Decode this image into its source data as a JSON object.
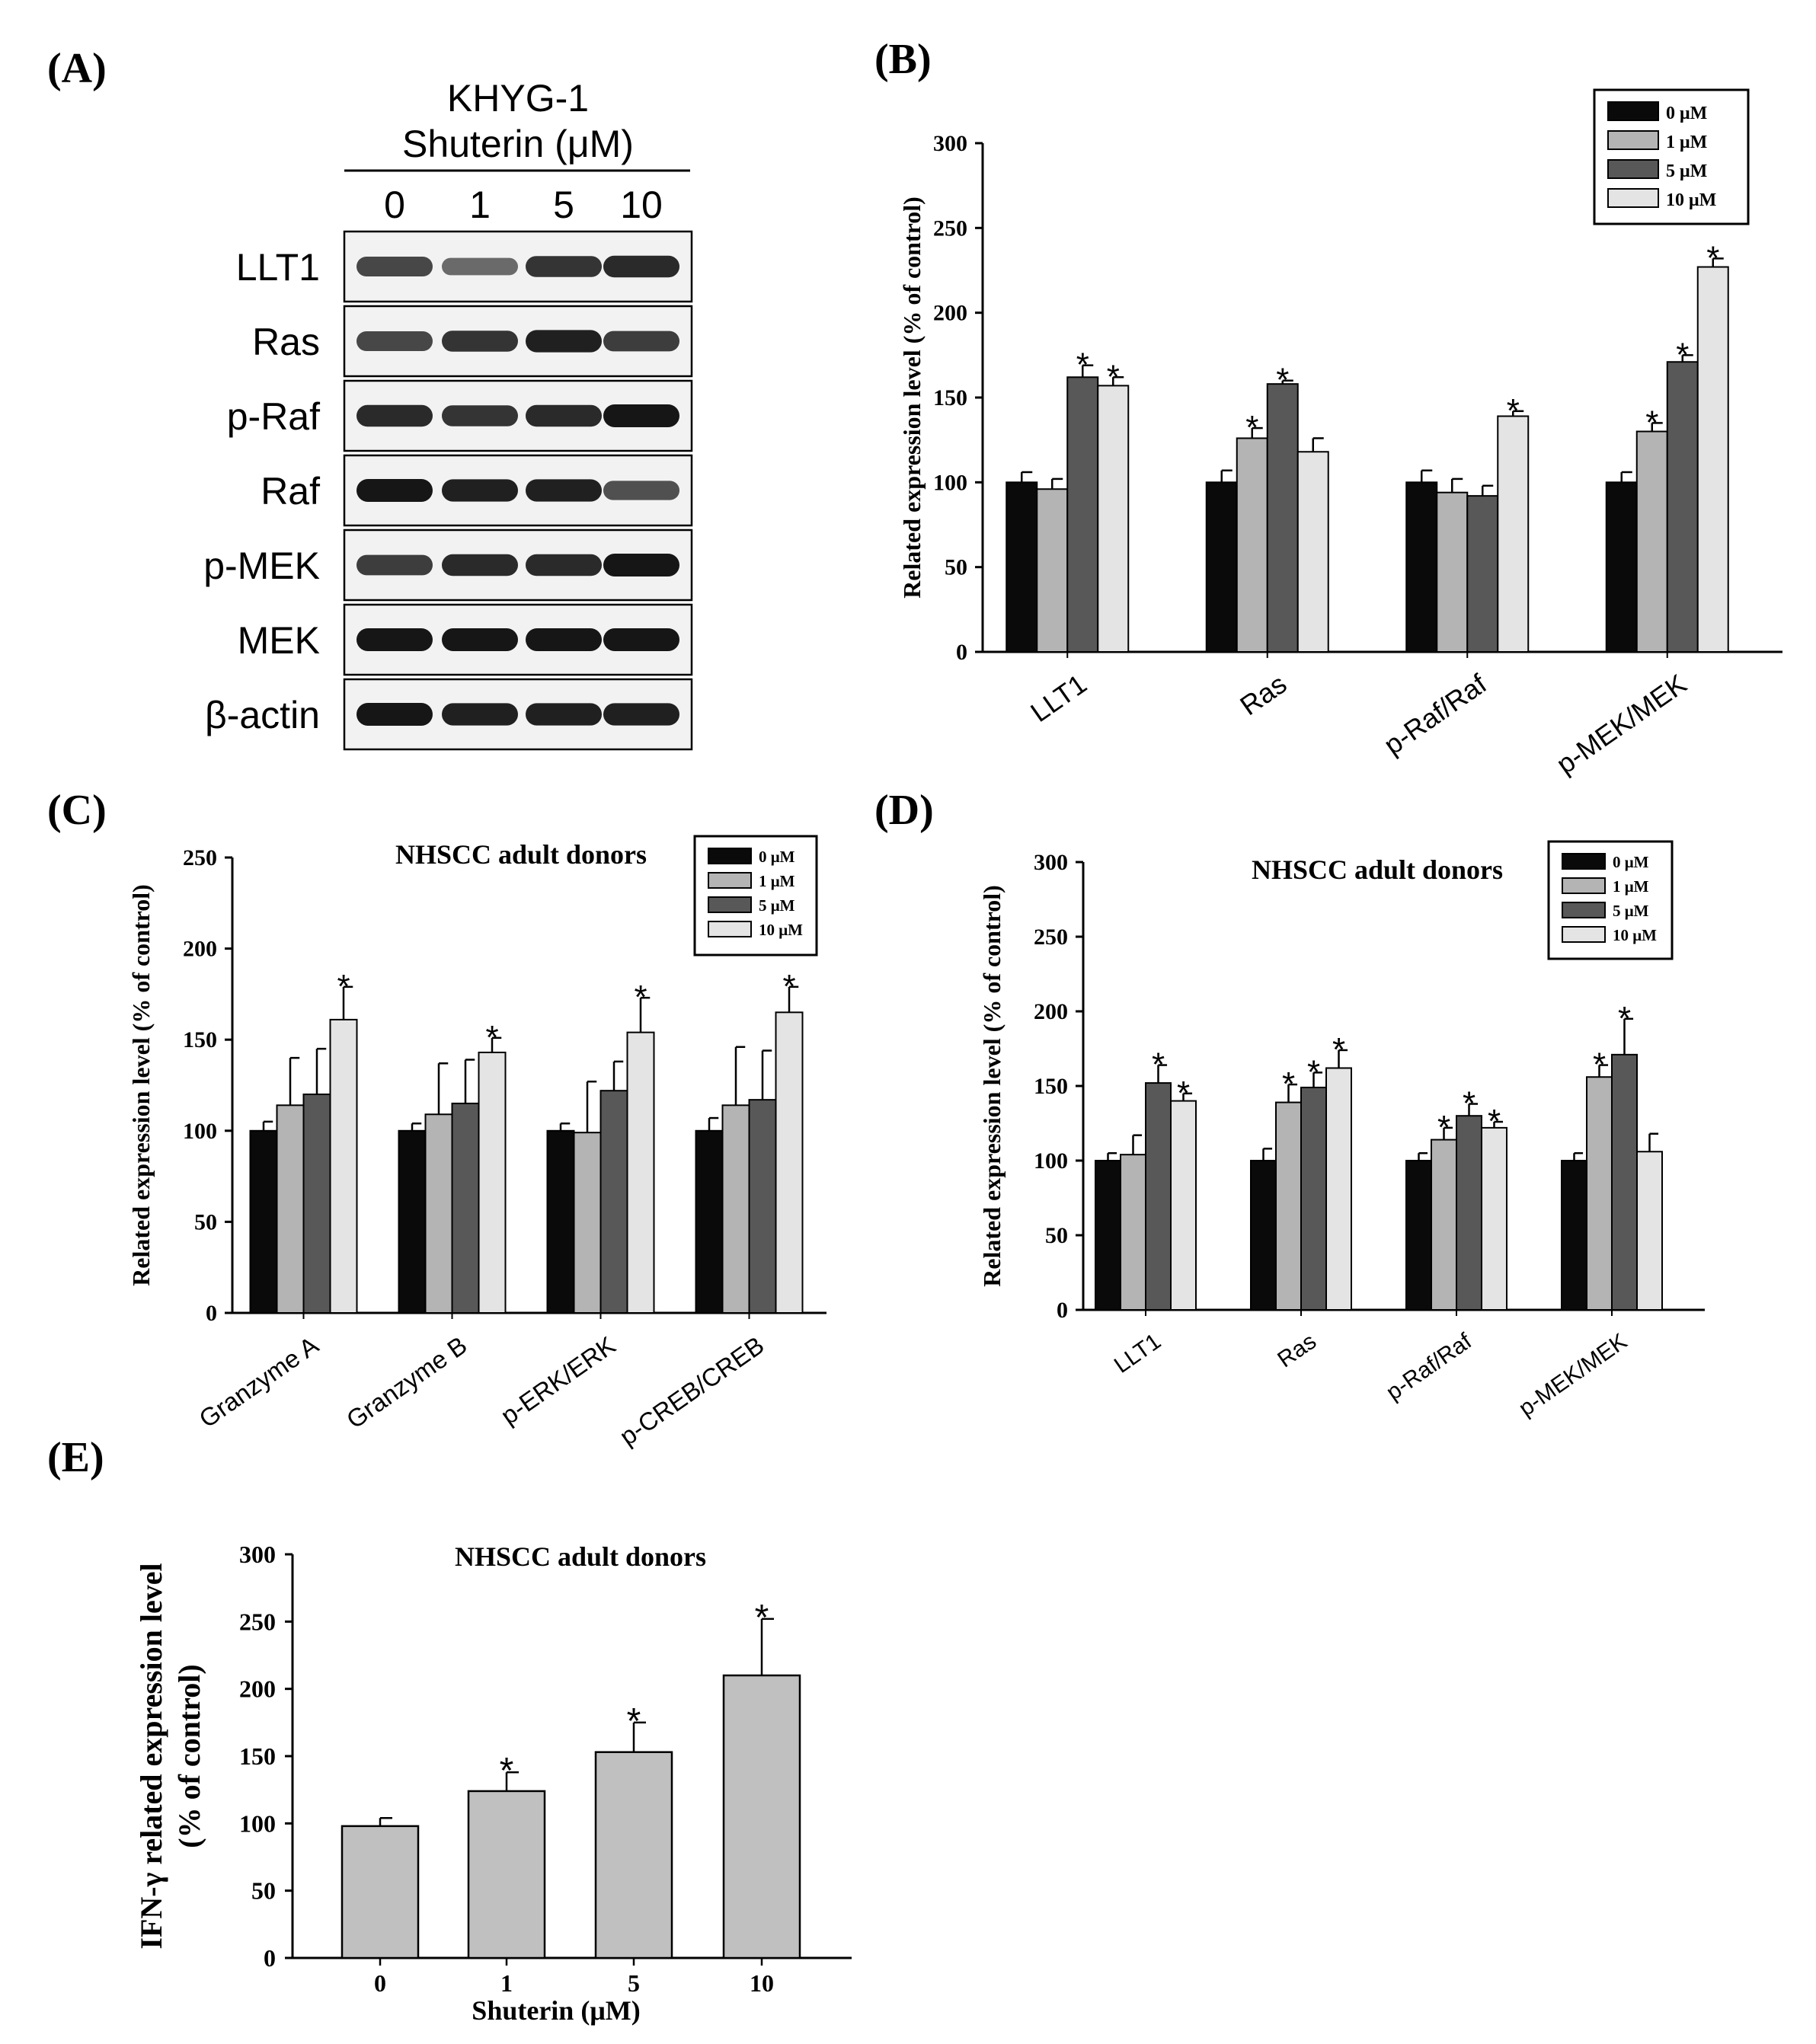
{
  "panels": {
    "A": "(A)",
    "B": "(B)",
    "C": "(C)",
    "D": "(D)",
    "E": "(E)"
  },
  "blot": {
    "cell_line": "KHYG-1",
    "treatment": "Shuterin (μM)",
    "lanes": [
      "0",
      "1",
      "5",
      "10"
    ],
    "rows": [
      {
        "label": "LLT1",
        "intensity": [
          0.75,
          0.55,
          0.85,
          0.9
        ]
      },
      {
        "label": "Ras",
        "intensity": [
          0.75,
          0.85,
          0.95,
          0.8
        ]
      },
      {
        "label": "p-Raf",
        "intensity": [
          0.9,
          0.85,
          0.9,
          1.0
        ]
      },
      {
        "label": "Raf",
        "intensity": [
          1.0,
          0.95,
          0.95,
          0.7
        ]
      },
      {
        "label": "p-MEK",
        "intensity": [
          0.8,
          0.9,
          0.9,
          1.0
        ]
      },
      {
        "label": "MEK",
        "intensity": [
          1.0,
          1.0,
          1.0,
          1.0
        ]
      },
      {
        "label": "β-actin",
        "intensity": [
          1.0,
          0.95,
          0.95,
          0.95
        ]
      }
    ]
  },
  "colors": {
    "s0": "#0a0a0a",
    "s1": "#b4b4b4",
    "s5": "#585858",
    "s10": "#e4e4e4",
    "single": "#c0c0c0"
  },
  "chart_data": [
    {
      "id": "B",
      "type": "bar",
      "title": "",
      "ylabel": "Related expression level (% of control)",
      "ylim": [
        0,
        300
      ],
      "yticks": [
        "0",
        "50",
        "100",
        "150",
        "200",
        "250",
        "300"
      ],
      "categories": [
        "LLT1",
        "Ras",
        "p-Raf/Raf",
        "p-MEK/MEK"
      ],
      "legend": [
        "0 μM",
        "1 μM",
        "5 μM",
        "10 μM"
      ],
      "series": [
        {
          "name": "0 μM",
          "values": [
            100,
            100,
            100,
            100
          ],
          "err": [
            6,
            7,
            7,
            6
          ],
          "sig": [
            false,
            false,
            false,
            false
          ]
        },
        {
          "name": "1 μM",
          "values": [
            96,
            126,
            94,
            130
          ],
          "err": [
            6,
            6,
            8,
            5
          ],
          "sig": [
            false,
            true,
            false,
            true
          ]
        },
        {
          "name": "5 μM",
          "values": [
            162,
            158,
            92,
            171
          ],
          "err": [
            7,
            2,
            6,
            4
          ],
          "sig": [
            true,
            true,
            false,
            true
          ]
        },
        {
          "name": "10 μM",
          "values": [
            157,
            118,
            139,
            227
          ],
          "err": [
            5,
            8,
            3,
            5
          ],
          "sig": [
            true,
            false,
            true,
            true
          ]
        }
      ]
    },
    {
      "id": "C",
      "type": "bar",
      "title": "NHSCC adult donors",
      "ylabel": "Related expression level (% of control)",
      "ylim": [
        0,
        250
      ],
      "yticks": [
        "0",
        "50",
        "100",
        "150",
        "200",
        "250"
      ],
      "categories": [
        "Granzyme A",
        "Granzyme B",
        "p-ERK/ERK",
        "p-CREB/CREB"
      ],
      "legend": [
        "0 μM",
        "1 μM",
        "5 μM",
        "10 μM"
      ],
      "series": [
        {
          "name": "0 μM",
          "values": [
            100,
            100,
            100,
            100
          ],
          "err": [
            5,
            4,
            4,
            7
          ],
          "sig": [
            false,
            false,
            false,
            false
          ]
        },
        {
          "name": "1 μM",
          "values": [
            114,
            109,
            99,
            114
          ],
          "err": [
            26,
            28,
            28,
            32
          ],
          "sig": [
            false,
            false,
            false,
            false
          ]
        },
        {
          "name": "5 μM",
          "values": [
            120,
            115,
            122,
            117
          ],
          "err": [
            25,
            24,
            16,
            27
          ],
          "sig": [
            false,
            false,
            false,
            false
          ]
        },
        {
          "name": "10 μM",
          "values": [
            161,
            143,
            154,
            165
          ],
          "err": [
            18,
            8,
            19,
            14
          ],
          "sig": [
            true,
            true,
            true,
            true
          ]
        }
      ]
    },
    {
      "id": "D",
      "type": "bar",
      "title": "NHSCC adult donors",
      "ylabel": "Related expression level (% of control)",
      "ylim": [
        0,
        300
      ],
      "yticks": [
        "0",
        "50",
        "100",
        "150",
        "200",
        "250",
        "300"
      ],
      "categories": [
        "LLT1",
        "Ras",
        "p-Raf/Raf",
        "p-MEK/MEK"
      ],
      "legend": [
        "0 μM",
        "1 μM",
        "5 μM",
        "10 μM"
      ],
      "series": [
        {
          "name": "0 μM",
          "values": [
            100,
            100,
            100,
            100
          ],
          "err": [
            5,
            8,
            5,
            5
          ],
          "sig": [
            false,
            false,
            false,
            false
          ]
        },
        {
          "name": "1 μM",
          "values": [
            104,
            139,
            114,
            156
          ],
          "err": [
            13,
            12,
            8,
            8
          ],
          "sig": [
            false,
            true,
            true,
            true
          ]
        },
        {
          "name": "5 μM",
          "values": [
            152,
            149,
            130,
            171
          ],
          "err": [
            12,
            10,
            8,
            24
          ],
          "sig": [
            true,
            true,
            true,
            true
          ]
        },
        {
          "name": "10 μM",
          "values": [
            140,
            162,
            122,
            106
          ],
          "err": [
            5,
            12,
            4,
            12
          ],
          "sig": [
            true,
            true,
            true,
            false
          ]
        }
      ]
    },
    {
      "id": "E",
      "type": "bar",
      "title": "NHSCC adult donors",
      "ylabel": "IFN-γ related expression level",
      "ylabel2": "(% of control)",
      "xlabel": "Shuterin (μM)",
      "ylim": [
        0,
        300
      ],
      "yticks": [
        "0",
        "50",
        "100",
        "150",
        "200",
        "250",
        "300"
      ],
      "categories": [
        "0",
        "1",
        "5",
        "10"
      ],
      "values": [
        98,
        124,
        153,
        210
      ],
      "err": [
        6,
        14,
        22,
        42
      ],
      "sig": [
        false,
        true,
        true,
        true
      ]
    }
  ]
}
